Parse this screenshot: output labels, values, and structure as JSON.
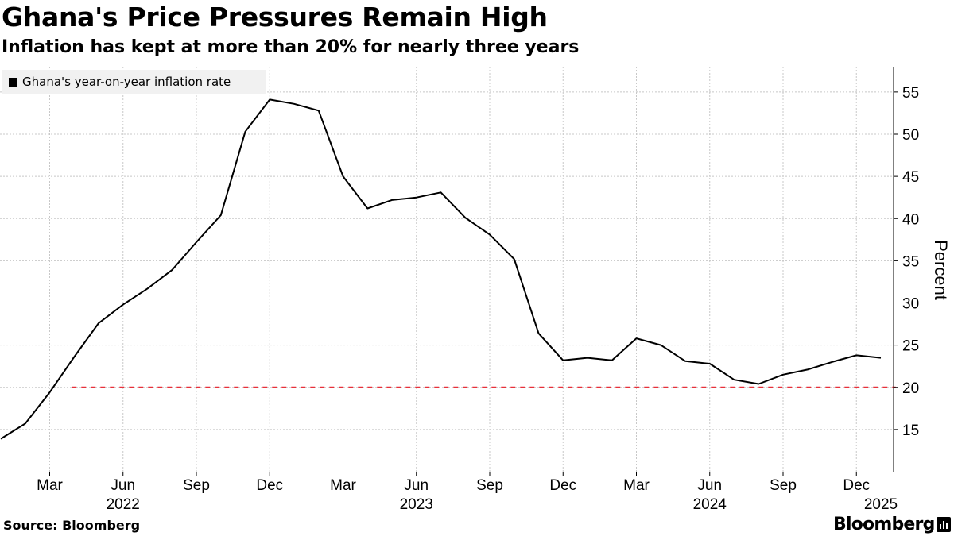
{
  "header": {
    "title": "Ghana's Price Pressures Remain High",
    "subtitle": "Inflation has kept at more than 20% for nearly three years"
  },
  "footer": {
    "source": "Source: Bloomberg",
    "brand": "Bloomberg"
  },
  "colors": {
    "line": "#000000",
    "reference_line": "#e8303a",
    "grid": "#c8c8c8",
    "legend_bg": "#f1f1f1"
  },
  "chart_data": {
    "type": "line",
    "title": "Ghana's Price Pressures Remain High",
    "subtitle": "Inflation has kept at more than 20% for nearly three years",
    "ylabel": "Percent",
    "xlabel": "",
    "ylim": [
      10,
      58
    ],
    "y_ticks": [
      15,
      20,
      25,
      30,
      35,
      40,
      45,
      50,
      55
    ],
    "grid": true,
    "legend_position": "top-left",
    "x": [
      "2022-01",
      "2022-02",
      "2022-03",
      "2022-04",
      "2022-05",
      "2022-06",
      "2022-07",
      "2022-08",
      "2022-09",
      "2022-10",
      "2022-11",
      "2022-12",
      "2023-01",
      "2023-02",
      "2023-03",
      "2023-04",
      "2023-05",
      "2023-06",
      "2023-07",
      "2023-08",
      "2023-09",
      "2023-10",
      "2023-11",
      "2023-12",
      "2024-01",
      "2024-02",
      "2024-03",
      "2024-04",
      "2024-05",
      "2024-06",
      "2024-07",
      "2024-08",
      "2024-09",
      "2024-10",
      "2024-11",
      "2024-12",
      "2025-01"
    ],
    "series": [
      {
        "name": "Ghana's year-on-year inflation rate",
        "values": [
          13.9,
          15.7,
          19.4,
          23.6,
          27.6,
          29.8,
          31.7,
          33.9,
          37.2,
          40.4,
          50.3,
          54.1,
          53.6,
          52.8,
          45.0,
          41.2,
          42.2,
          42.5,
          43.1,
          40.1,
          38.1,
          35.2,
          26.4,
          23.2,
          23.5,
          23.2,
          25.8,
          25.0,
          23.1,
          22.8,
          20.9,
          20.4,
          21.5,
          22.1,
          23.0,
          23.8,
          23.5
        ]
      }
    ],
    "reference_line": {
      "value": 20,
      "from": "2022-04",
      "to": "2025-02",
      "style": "dashed"
    },
    "x_tick_labels": [
      {
        "x": "2022-03",
        "label": "Mar"
      },
      {
        "x": "2022-06",
        "label": "Jun"
      },
      {
        "x": "2022-09",
        "label": "Sep"
      },
      {
        "x": "2022-12",
        "label": "Dec"
      },
      {
        "x": "2023-03",
        "label": "Mar"
      },
      {
        "x": "2023-06",
        "label": "Jun"
      },
      {
        "x": "2023-09",
        "label": "Sep"
      },
      {
        "x": "2023-12",
        "label": "Dec"
      },
      {
        "x": "2024-03",
        "label": "Mar"
      },
      {
        "x": "2024-06",
        "label": "Jun"
      },
      {
        "x": "2024-09",
        "label": "Sep"
      },
      {
        "x": "2024-12",
        "label": "Dec"
      }
    ],
    "year_labels": [
      {
        "x": "2022-06",
        "label": "2022"
      },
      {
        "x": "2023-06",
        "label": "2023"
      },
      {
        "x": "2024-06",
        "label": "2024"
      },
      {
        "x": "2025-01",
        "label": "2025"
      }
    ]
  }
}
